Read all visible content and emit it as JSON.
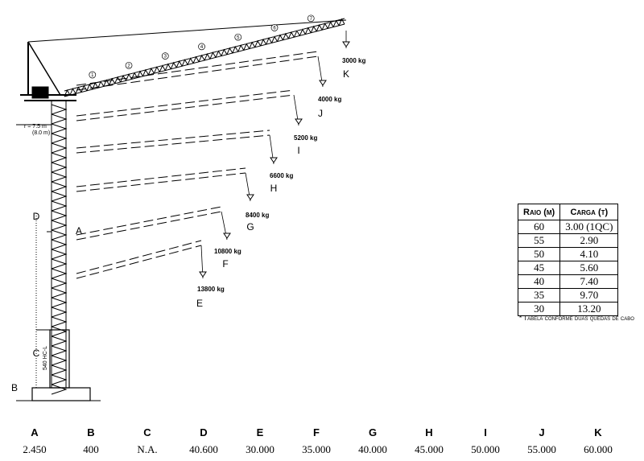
{
  "diagram": {
    "jib_labels": [
      "1",
      "2",
      "3",
      "4",
      "5",
      "6",
      "7"
    ],
    "positions": [
      {
        "load": "3000 kg",
        "letter": "K"
      },
      {
        "load": "4000 kg",
        "letter": "J"
      },
      {
        "load": "5200 kg",
        "letter": "I"
      },
      {
        "load": "6600 kg",
        "letter": "H"
      },
      {
        "load": "8400 kg",
        "letter": "G"
      },
      {
        "load": "10800 kg",
        "letter": "F"
      },
      {
        "load": "13800 kg",
        "letter": "E"
      }
    ],
    "mast_labels": {
      "d": "D",
      "a": "A",
      "c": "C",
      "b": "B",
      "radius": "r = 7.5 m",
      "radius_alt": "(8.0 m)",
      "section": "540 HC-L"
    }
  },
  "table": {
    "headers": [
      "Raio (m)",
      "Carga (t)"
    ],
    "rows": [
      [
        "60",
        "3.00 (1QC)"
      ],
      [
        "55",
        "2.90"
      ],
      [
        "50",
        "4.10"
      ],
      [
        "45",
        "5.60"
      ],
      [
        "40",
        "7.40"
      ],
      [
        "35",
        "9.70"
      ],
      [
        "30",
        "13.20"
      ]
    ],
    "note": "* Tabela conforme duas quedas de cabo"
  },
  "dimensions": {
    "headers": [
      "A",
      "B",
      "C",
      "D",
      "E",
      "F",
      "G",
      "H",
      "I",
      "J",
      "K"
    ],
    "values": [
      "2.450",
      "400",
      "N.A.",
      "40.600",
      "30.000",
      "35.000",
      "40.000",
      "45.000",
      "50.000",
      "55.000",
      "60.000"
    ]
  }
}
